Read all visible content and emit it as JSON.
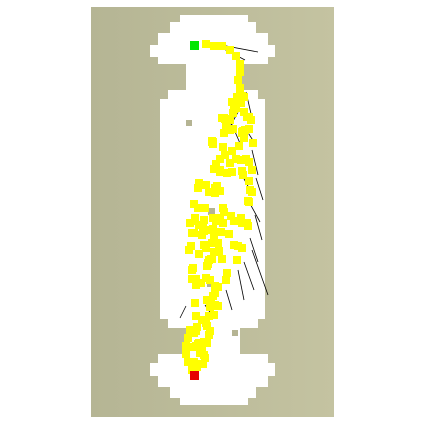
{
  "scene": {
    "type": "grid-path-planning-visualization",
    "colors": {
      "background": "#ffffff",
      "obstacle": "#b5b493",
      "free_space": "#ffffff",
      "explored_node": "#ffff00",
      "tree_edge": "#000000",
      "start": "#00e600",
      "goal": "#e60000"
    },
    "markers": [
      {
        "name": "start-marker",
        "color": "#00e600"
      },
      {
        "name": "goal-marker",
        "color": "#e60000"
      }
    ],
    "legend": []
  }
}
